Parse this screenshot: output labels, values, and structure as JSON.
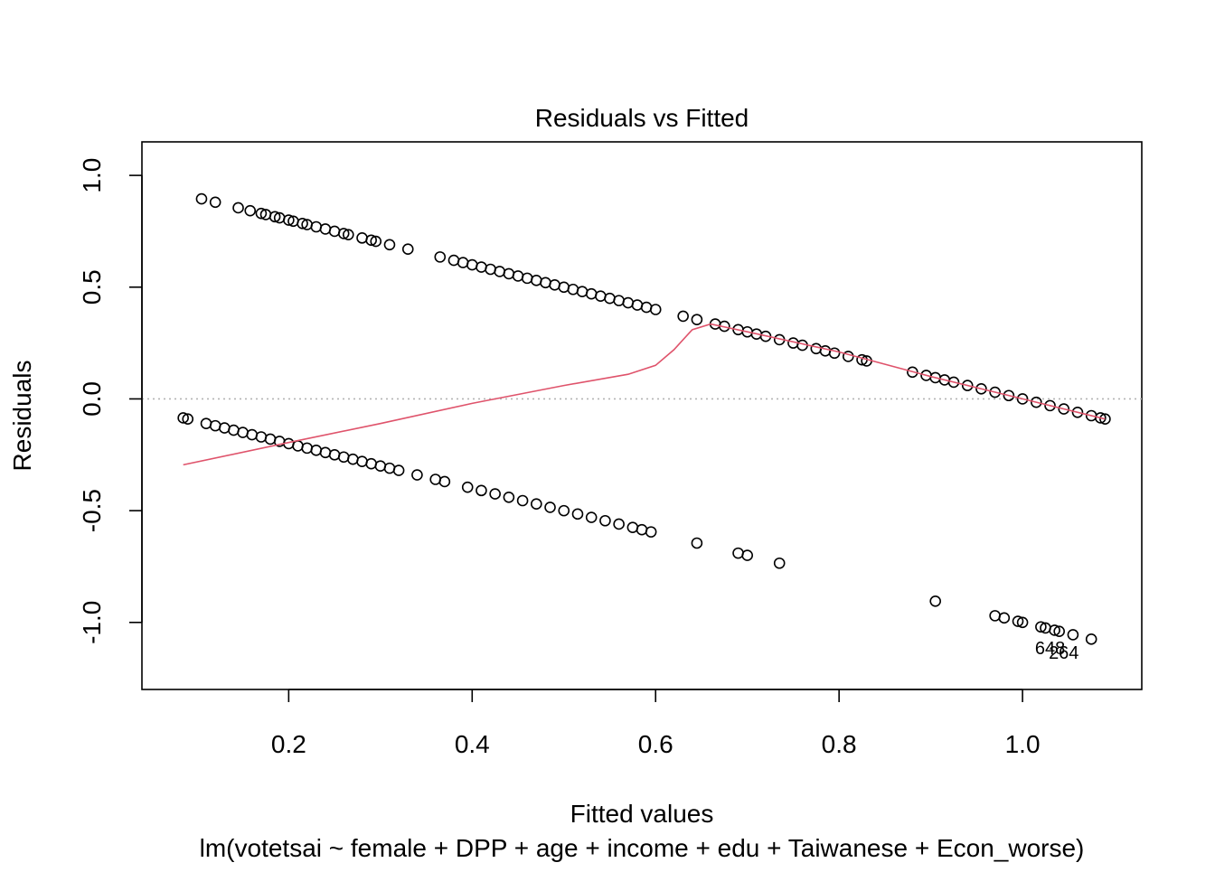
{
  "chart_data": {
    "type": "scatter",
    "title": "Residuals vs Fitted",
    "xlabel": "Fitted values",
    "ylabel": "Residuals",
    "subtitle": "lm(votetsai ~ female + DPP + age + income + edu + Taiwanese + Econ_worse)",
    "xlim": [
      0.04,
      1.13
    ],
    "ylim": [
      -1.3,
      1.15
    ],
    "x_ticks": [
      0.2,
      0.4,
      0.6,
      0.8,
      1.0
    ],
    "x_tick_labels": [
      "0.2",
      "0.4",
      "0.6",
      "0.8",
      "1.0"
    ],
    "y_ticks": [
      -1.0,
      -0.5,
      0.0,
      0.5,
      1.0
    ],
    "y_tick_labels": [
      "-1.0",
      "-0.5",
      "0.0",
      "0.5",
      "1.0"
    ],
    "reference_line_y": 0,
    "upper_band_samples": [
      [
        0.105,
        0.895
      ],
      [
        0.12,
        0.88
      ],
      [
        0.145,
        0.855
      ],
      [
        0.158,
        0.842
      ],
      [
        0.17,
        0.83
      ],
      [
        0.175,
        0.825
      ],
      [
        0.185,
        0.815
      ],
      [
        0.19,
        0.81
      ],
      [
        0.2,
        0.8
      ],
      [
        0.205,
        0.795
      ],
      [
        0.215,
        0.785
      ],
      [
        0.22,
        0.78
      ],
      [
        0.23,
        0.77
      ],
      [
        0.24,
        0.76
      ],
      [
        0.25,
        0.75
      ],
      [
        0.26,
        0.74
      ],
      [
        0.265,
        0.735
      ],
      [
        0.28,
        0.72
      ],
      [
        0.29,
        0.71
      ],
      [
        0.295,
        0.705
      ],
      [
        0.31,
        0.69
      ],
      [
        0.33,
        0.67
      ],
      [
        0.365,
        0.635
      ],
      [
        0.38,
        0.62
      ],
      [
        0.39,
        0.61
      ],
      [
        0.4,
        0.6
      ],
      [
        0.41,
        0.59
      ],
      [
        0.42,
        0.58
      ],
      [
        0.43,
        0.57
      ],
      [
        0.44,
        0.56
      ],
      [
        0.45,
        0.55
      ],
      [
        0.46,
        0.54
      ],
      [
        0.47,
        0.53
      ],
      [
        0.48,
        0.52
      ],
      [
        0.49,
        0.51
      ],
      [
        0.5,
        0.5
      ],
      [
        0.51,
        0.49
      ],
      [
        0.52,
        0.48
      ],
      [
        0.53,
        0.47
      ],
      [
        0.54,
        0.46
      ],
      [
        0.55,
        0.45
      ],
      [
        0.56,
        0.44
      ],
      [
        0.57,
        0.43
      ],
      [
        0.58,
        0.42
      ],
      [
        0.59,
        0.41
      ],
      [
        0.6,
        0.4
      ],
      [
        0.63,
        0.37
      ],
      [
        0.645,
        0.355
      ],
      [
        0.665,
        0.335
      ],
      [
        0.675,
        0.325
      ],
      [
        0.69,
        0.31
      ],
      [
        0.7,
        0.3
      ],
      [
        0.71,
        0.29
      ],
      [
        0.72,
        0.28
      ],
      [
        0.735,
        0.265
      ],
      [
        0.75,
        0.25
      ],
      [
        0.76,
        0.24
      ],
      [
        0.775,
        0.225
      ],
      [
        0.785,
        0.215
      ],
      [
        0.795,
        0.205
      ],
      [
        0.81,
        0.19
      ],
      [
        0.825,
        0.175
      ],
      [
        0.83,
        0.17
      ],
      [
        0.88,
        0.12
      ],
      [
        0.895,
        0.105
      ],
      [
        0.905,
        0.095
      ],
      [
        0.915,
        0.085
      ],
      [
        0.925,
        0.075
      ],
      [
        0.94,
        0.06
      ],
      [
        0.955,
        0.045
      ],
      [
        0.97,
        0.03
      ],
      [
        0.985,
        0.015
      ],
      [
        1.0,
        0.0
      ],
      [
        1.015,
        -0.015
      ],
      [
        1.03,
        -0.03
      ],
      [
        1.045,
        -0.045
      ],
      [
        1.06,
        -0.06
      ],
      [
        1.075,
        -0.075
      ],
      [
        1.085,
        -0.085
      ],
      [
        1.09,
        -0.09
      ]
    ],
    "lower_band_samples": [
      [
        0.085,
        -0.085
      ],
      [
        0.09,
        -0.09
      ],
      [
        0.11,
        -0.11
      ],
      [
        0.12,
        -0.12
      ],
      [
        0.13,
        -0.13
      ],
      [
        0.14,
        -0.14
      ],
      [
        0.15,
        -0.15
      ],
      [
        0.16,
        -0.16
      ],
      [
        0.17,
        -0.17
      ],
      [
        0.18,
        -0.18
      ],
      [
        0.19,
        -0.19
      ],
      [
        0.2,
        -0.2
      ],
      [
        0.21,
        -0.21
      ],
      [
        0.22,
        -0.22
      ],
      [
        0.23,
        -0.23
      ],
      [
        0.24,
        -0.24
      ],
      [
        0.25,
        -0.25
      ],
      [
        0.26,
        -0.26
      ],
      [
        0.27,
        -0.27
      ],
      [
        0.28,
        -0.28
      ],
      [
        0.29,
        -0.29
      ],
      [
        0.3,
        -0.3
      ],
      [
        0.31,
        -0.31
      ],
      [
        0.32,
        -0.32
      ],
      [
        0.34,
        -0.34
      ],
      [
        0.36,
        -0.36
      ],
      [
        0.37,
        -0.37
      ],
      [
        0.395,
        -0.395
      ],
      [
        0.41,
        -0.41
      ],
      [
        0.425,
        -0.425
      ],
      [
        0.44,
        -0.44
      ],
      [
        0.455,
        -0.455
      ],
      [
        0.47,
        -0.47
      ],
      [
        0.485,
        -0.485
      ],
      [
        0.5,
        -0.5
      ],
      [
        0.515,
        -0.515
      ],
      [
        0.53,
        -0.53
      ],
      [
        0.545,
        -0.545
      ],
      [
        0.56,
        -0.56
      ],
      [
        0.575,
        -0.575
      ],
      [
        0.585,
        -0.585
      ],
      [
        0.595,
        -0.595
      ],
      [
        0.645,
        -0.645
      ],
      [
        0.69,
        -0.69
      ],
      [
        0.7,
        -0.7
      ],
      [
        0.735,
        -0.735
      ],
      [
        0.905,
        -0.905
      ],
      [
        0.97,
        -0.97
      ],
      [
        0.98,
        -0.98
      ],
      [
        0.995,
        -0.995
      ],
      [
        1.0,
        -1.0
      ],
      [
        1.02,
        -1.02
      ],
      [
        1.025,
        -1.025
      ],
      [
        1.035,
        -1.035
      ],
      [
        1.04,
        -1.04
      ],
      [
        1.055,
        -1.055
      ],
      [
        1.075,
        -1.075
      ]
    ],
    "smoother": [
      [
        0.085,
        -0.295
      ],
      [
        0.2,
        -0.195
      ],
      [
        0.3,
        -0.11
      ],
      [
        0.4,
        -0.02
      ],
      [
        0.5,
        0.06
      ],
      [
        0.57,
        0.11
      ],
      [
        0.6,
        0.15
      ],
      [
        0.62,
        0.22
      ],
      [
        0.64,
        0.31
      ],
      [
        0.66,
        0.335
      ],
      [
        0.7,
        0.3
      ],
      [
        0.8,
        0.21
      ],
      [
        0.9,
        0.1
      ],
      [
        1.0,
        0.0
      ],
      [
        1.09,
        -0.09
      ]
    ],
    "point_labels": [
      {
        "text": "648",
        "x": 1.03,
        "y": -1.03
      },
      {
        "text": "264",
        "x": 1.045,
        "y": -1.05
      }
    ]
  }
}
